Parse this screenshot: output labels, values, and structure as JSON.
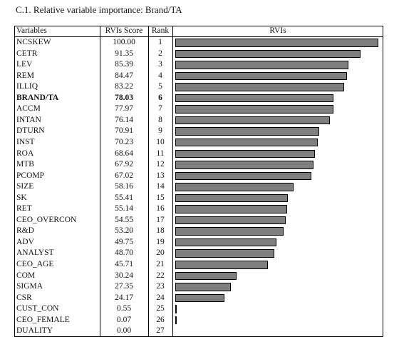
{
  "title": "C.1. Relative variable importance: Brand/TA",
  "table": {
    "headers": {
      "variables": "Variables",
      "score": "RVIs Score",
      "rank": "Rank",
      "rvis": "RVIs"
    },
    "highlight_variable": "BRAND/TA"
  },
  "chart_data": {
    "type": "bar",
    "orientation": "horizontal",
    "title": "C.1. Relative variable importance: Brand/TA",
    "value_label": "RVIs",
    "xlim": [
      0,
      100
    ],
    "categories": [
      "NCSKEW",
      "CETR",
      "LEV",
      "REM",
      "ILLIQ",
      "BRAND/TA",
      "ACCM",
      "INTAN",
      "DTURN",
      "INST",
      "ROA",
      "MTB",
      "PCOMP",
      "SIZE",
      "SK",
      "RET",
      "CEO_OVERCON",
      "R&D",
      "ADV",
      "ANALYST",
      "CEO_AGE",
      "COM",
      "SIGMA",
      "CSR",
      "CUST_CON",
      "CEO_FEMALE",
      "DUALITY"
    ],
    "values": [
      100.0,
      91.35,
      85.39,
      84.47,
      83.22,
      78.03,
      77.97,
      76.14,
      70.91,
      70.23,
      68.64,
      67.92,
      67.02,
      58.16,
      55.41,
      55.14,
      54.55,
      53.2,
      49.75,
      48.7,
      45.71,
      30.24,
      27.35,
      24.17,
      0.55,
      0.07,
      0.0
    ],
    "value_text": [
      "100.00",
      "91.35",
      "85.39",
      "84.47",
      "83.22",
      "78.03",
      "77.97",
      "76.14",
      "70.91",
      "70.23",
      "68.64",
      "67.92",
      "67.02",
      "58.16",
      "55.41",
      "55.14",
      "54.55",
      "53.20",
      "49.75",
      "48.70",
      "45.71",
      "30.24",
      "27.35",
      "24.17",
      "0.55",
      "0.07",
      "0.00"
    ],
    "ranks": [
      "1",
      "2",
      "3",
      "4",
      "5",
      "6",
      "7",
      "8",
      "9",
      "10",
      "11",
      "12",
      "13",
      "14",
      "15",
      "16",
      "17",
      "18",
      "19",
      "20",
      "21",
      "22",
      "23",
      "24",
      "25",
      "26",
      "27"
    ],
    "grid": false,
    "legend": "none"
  }
}
